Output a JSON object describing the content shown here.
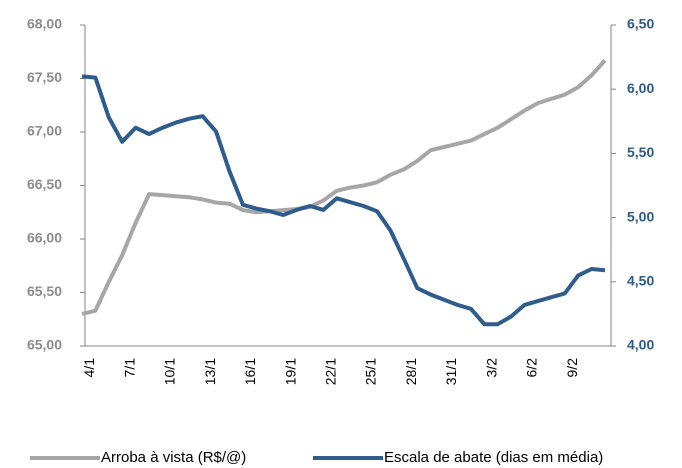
{
  "chart_data": {
    "type": "line",
    "categories": [
      null,
      "4/1",
      null,
      null,
      "7/1",
      null,
      null,
      "10/1",
      null,
      null,
      "13/1",
      null,
      null,
      "16/1",
      null,
      null,
      "19/1",
      null,
      null,
      "22/1",
      null,
      null,
      "25/1",
      null,
      null,
      "28/1",
      null,
      null,
      "31/1",
      null,
      null,
      "3/2",
      null,
      null,
      "6/2",
      null,
      null,
      "9/2",
      null,
      null
    ],
    "series": [
      {
        "name": "Arroba à vista (R$/@)",
        "color": "#a6a6a6",
        "values": [
          65.3,
          65.33,
          65.6,
          65.85,
          66.15,
          66.42,
          66.41,
          66.4,
          66.39,
          66.37,
          66.34,
          66.33,
          66.27,
          66.25,
          66.26,
          66.27,
          66.28,
          66.3,
          66.36,
          66.45,
          66.48,
          66.5,
          66.53,
          66.6,
          66.65,
          66.73,
          66.83,
          66.86,
          66.89,
          66.92,
          66.98,
          67.04,
          67.12,
          67.2,
          67.27,
          67.31,
          67.35,
          67.42,
          67.53,
          67.67
        ]
      },
      {
        "name": "Escala de abate (dias em média)",
        "color": "#2e5c8c",
        "axis": "y2",
        "values": [
          6.1,
          6.09,
          5.78,
          5.59,
          5.7,
          5.65,
          5.7,
          5.74,
          5.77,
          5.79,
          5.67,
          5.36,
          5.1,
          5.07,
          5.05,
          5.02,
          5.06,
          5.09,
          5.06,
          5.15,
          5.12,
          5.09,
          5.05,
          4.9,
          4.68,
          4.45,
          4.4,
          4.36,
          4.32,
          4.29,
          4.17,
          4.17,
          4.23,
          4.32,
          4.35,
          4.38,
          4.41,
          4.55,
          4.6,
          4.59
        ]
      }
    ],
    "ylim": [
      65,
      68
    ],
    "yticks": [
      {
        "value": 65,
        "label": "65,00"
      },
      {
        "value": 65.5,
        "label": "65,50"
      },
      {
        "value": 66,
        "label": "66,00"
      },
      {
        "value": 66.5,
        "label": "66,50"
      },
      {
        "value": 67,
        "label": "67,00"
      },
      {
        "value": 67.5,
        "label": "67,50"
      },
      {
        "value": 68,
        "label": "68,00"
      }
    ],
    "y2lim": [
      4,
      6.5
    ],
    "y2ticks": [
      {
        "value": 4,
        "label": "4,00"
      },
      {
        "value": 4.5,
        "label": "4,50"
      },
      {
        "value": 5,
        "label": "5,00"
      },
      {
        "value": 5.5,
        "label": "5,50"
      },
      {
        "value": 6,
        "label": "6,00"
      },
      {
        "value": 6.5,
        "label": "6,50"
      }
    ],
    "legend": "bottom"
  }
}
